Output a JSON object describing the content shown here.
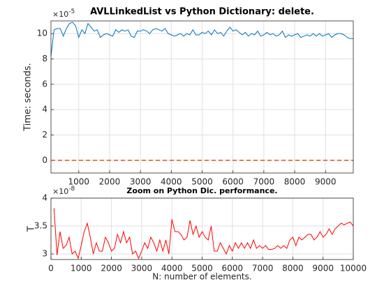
{
  "chart_data": [
    {
      "type": "line",
      "title": "AVLLinkedList vs Python Dictionary: delete.",
      "y_label": "Time: seconds.",
      "y_scale_base": "×10",
      "y_scale_power": "-5",
      "xlim": [
        100,
        9900
      ],
      "xticks": [
        1000,
        2000,
        3000,
        4000,
        5000,
        6000,
        7000,
        8000,
        9000
      ],
      "ylim": [
        -1,
        11
      ],
      "yticks": [
        0,
        2,
        4,
        6,
        8,
        10
      ],
      "grid": true,
      "x": [
        100,
        200,
        300,
        400,
        500,
        600,
        700,
        800,
        900,
        1000,
        1100,
        1200,
        1300,
        1400,
        1500,
        1600,
        1700,
        1800,
        1900,
        2000,
        2100,
        2200,
        2300,
        2400,
        2500,
        2600,
        2700,
        2800,
        2900,
        3000,
        3100,
        3200,
        3300,
        3400,
        3500,
        3600,
        3700,
        3800,
        3900,
        4000,
        4100,
        4200,
        4300,
        4400,
        4500,
        4600,
        4700,
        4800,
        4900,
        5000,
        5100,
        5200,
        5300,
        5400,
        5500,
        5600,
        5700,
        5800,
        5900,
        6000,
        6100,
        6200,
        6300,
        6400,
        6500,
        6600,
        6700,
        6800,
        6900,
        7000,
        7100,
        7200,
        7300,
        7400,
        7500,
        7600,
        7700,
        7800,
        7900,
        8000,
        8100,
        8200,
        8300,
        8400,
        8500,
        8600,
        8700,
        8800,
        8900,
        9000,
        9100,
        9200,
        9300,
        9400,
        9500,
        9600,
        9700,
        9800,
        9900
      ],
      "series": [
        {
          "color": "#0072bd",
          "dash": false,
          "values": [
            8.2,
            10.3,
            10.4,
            10.4,
            9.8,
            10.4,
            10.8,
            10.9,
            10.6,
            9.7,
            10.3,
            10.0,
            10.8,
            10.5,
            10.2,
            10.3,
            9.7,
            9.9,
            10.0,
            9.9,
            9.8,
            10.3,
            10.1,
            10.3,
            10.2,
            10.3,
            9.8,
            9.7,
            10.2,
            10.2,
            10.3,
            10.2,
            10.0,
            10.3,
            10.4,
            10.3,
            10.2,
            10.4,
            10.0,
            9.9,
            9.8,
            9.9,
            10.0,
            9.8,
            10.0,
            9.9,
            10.3,
            9.9,
            9.9,
            10.1,
            10.0,
            10.2,
            9.9,
            10.3,
            10.0,
            10.1,
            9.8,
            10.2,
            10.5,
            10.2,
            10.3,
            10.1,
            9.9,
            10.1,
            9.8,
            10.0,
            9.9,
            10.2,
            9.8,
            9.9,
            10.1,
            9.9,
            10.0,
            9.8,
            9.9,
            10.2,
            9.7,
            9.9,
            9.8,
            9.9,
            10.0,
            9.7,
            9.8,
            9.9,
            9.8,
            10.0,
            9.8,
            10.0,
            9.8,
            9.9,
            10.0,
            9.7,
            9.9,
            10.0,
            10.0,
            9.9,
            9.7,
            9.6,
            9.6
          ]
        },
        {
          "color": "#d95319",
          "dash": true,
          "values": [
            0.003,
            0.003,
            0.003,
            0.003,
            0.003,
            0.003,
            0.003,
            0.003,
            0.003,
            0.003,
            0.003,
            0.003,
            0.003,
            0.003,
            0.003,
            0.003,
            0.003,
            0.003,
            0.003,
            0.003,
            0.003,
            0.003,
            0.003,
            0.003,
            0.003,
            0.003,
            0.003,
            0.003,
            0.003,
            0.003,
            0.003,
            0.003,
            0.003,
            0.003,
            0.003,
            0.003,
            0.003,
            0.003,
            0.003,
            0.003,
            0.003,
            0.003,
            0.003,
            0.003,
            0.003,
            0.003,
            0.003,
            0.003,
            0.003,
            0.003,
            0.003,
            0.003,
            0.003,
            0.003,
            0.003,
            0.003,
            0.003,
            0.003,
            0.003,
            0.003,
            0.003,
            0.003,
            0.003,
            0.003,
            0.003,
            0.003,
            0.003,
            0.003,
            0.003,
            0.003,
            0.003,
            0.003,
            0.003,
            0.003,
            0.003,
            0.003,
            0.003,
            0.003,
            0.003,
            0.003,
            0.003,
            0.003,
            0.003,
            0.003,
            0.003,
            0.003,
            0.003,
            0.003,
            0.003,
            0.003,
            0.003,
            0.003,
            0.003,
            0.003,
            0.003,
            0.003,
            0.003,
            0.003,
            0.003
          ]
        }
      ]
    },
    {
      "type": "line",
      "title": "Zoom on Python Dic. performance.",
      "y_label": "T",
      "x_label": "N: number of elements.",
      "y_scale_base": "×10",
      "y_scale_power": "-8",
      "xlim": [
        0,
        10000
      ],
      "xticks": [
        0,
        1000,
        2000,
        3000,
        4000,
        5000,
        6000,
        7000,
        8000,
        9000,
        10000
      ],
      "ylim": [
        2.9,
        4
      ],
      "yticks": [
        3,
        3.5,
        4
      ],
      "grid": true,
      "x": [
        100,
        200,
        300,
        400,
        500,
        600,
        700,
        800,
        900,
        1000,
        1100,
        1200,
        1300,
        1400,
        1500,
        1600,
        1700,
        1800,
        1900,
        2000,
        2100,
        2200,
        2300,
        2400,
        2500,
        2600,
        2700,
        2800,
        2900,
        3000,
        3100,
        3200,
        3300,
        3400,
        3500,
        3600,
        3700,
        3800,
        3900,
        4000,
        4100,
        4200,
        4300,
        4400,
        4500,
        4600,
        4700,
        4800,
        4900,
        5000,
        5100,
        5200,
        5300,
        5400,
        5500,
        5600,
        5700,
        5800,
        5900,
        6000,
        6100,
        6200,
        6300,
        6400,
        6500,
        6600,
        6700,
        6800,
        6900,
        7000,
        7100,
        7200,
        7300,
        7400,
        7500,
        7600,
        7700,
        7800,
        7900,
        8000,
        8100,
        8200,
        8300,
        8400,
        8500,
        8600,
        8700,
        8800,
        8900,
        9000,
        9100,
        9200,
        9300,
        9400,
        9500,
        9600,
        9700,
        9800,
        9900,
        10000
      ],
      "series": [
        {
          "color": "#ff0000",
          "dash": false,
          "values": [
            3.82,
            2.98,
            3.4,
            3.1,
            3.15,
            3.3,
            3.0,
            3.05,
            2.92,
            3.15,
            3.4,
            3.55,
            3.3,
            3.0,
            3.2,
            3.05,
            3.05,
            3.3,
            3.2,
            3.05,
            3.1,
            3.35,
            3.2,
            3.4,
            3.2,
            3.3,
            3.0,
            3.05,
            2.92,
            3.05,
            3.2,
            3.1,
            3.3,
            3.2,
            3.05,
            3.25,
            3.05,
            3.25,
            3.0,
            3.62,
            3.4,
            3.4,
            3.35,
            3.25,
            3.3,
            3.6,
            3.35,
            3.5,
            3.3,
            3.4,
            3.3,
            3.25,
            3.5,
            3.05,
            3.05,
            3.2,
            3.1,
            3.0,
            3.15,
            3.05,
            3.2,
            3.1,
            3.2,
            3.1,
            3.2,
            3.1,
            3.25,
            3.1,
            3.15,
            3.1,
            3.15,
            3.08,
            3.08,
            3.1,
            3.15,
            3.1,
            3.15,
            3.1,
            3.25,
            3.3,
            3.15,
            3.3,
            3.25,
            3.3,
            3.35,
            3.35,
            3.25,
            3.3,
            3.4,
            3.3,
            3.35,
            3.45,
            3.35,
            3.45,
            3.5,
            3.55,
            3.52,
            3.55,
            3.57,
            3.5
          ]
        }
      ]
    }
  ]
}
